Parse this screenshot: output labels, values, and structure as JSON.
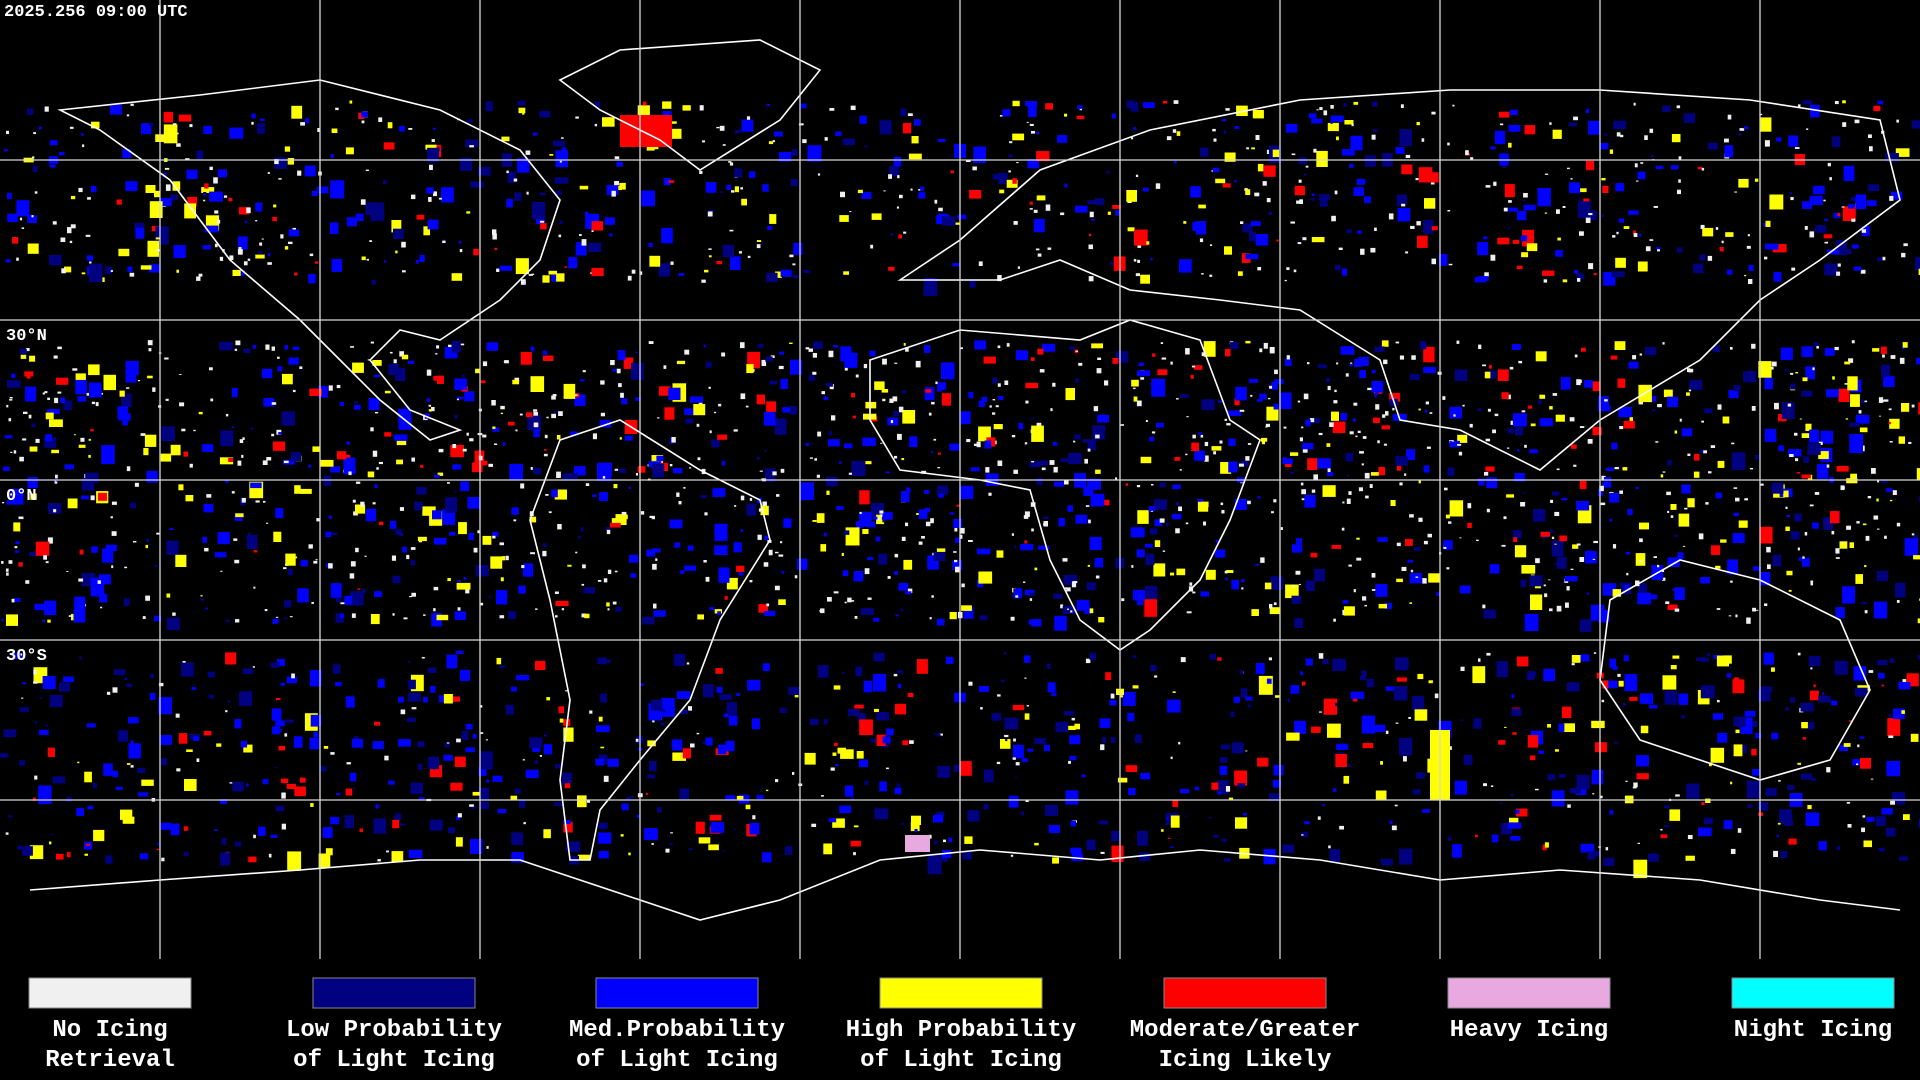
{
  "header": {
    "timestamp": "2025.256 09:00 UTC"
  },
  "map": {
    "latitude_labels": [
      "30°N",
      "0°N",
      "30°S"
    ]
  },
  "legend": {
    "items": [
      {
        "lines": [
          "No Icing",
          "Retrieval"
        ],
        "color": "#f0f0f0"
      },
      {
        "lines": [
          "Low Probability",
          "of Light Icing"
        ],
        "color": "#000080"
      },
      {
        "lines": [
          "Med.Probability",
          "of Light Icing"
        ],
        "color": "#0000ff"
      },
      {
        "lines": [
          "High Probability",
          "of Light Icing"
        ],
        "color": "#ffff00"
      },
      {
        "lines": [
          "Moderate/Greater",
          "Icing Likely"
        ],
        "color": "#ff0000"
      },
      {
        "lines": [
          "Heavy Icing"
        ],
        "color": "#e8a8e0"
      },
      {
        "lines": [
          "Night Icing"
        ],
        "color": "#00ffff"
      }
    ]
  }
}
